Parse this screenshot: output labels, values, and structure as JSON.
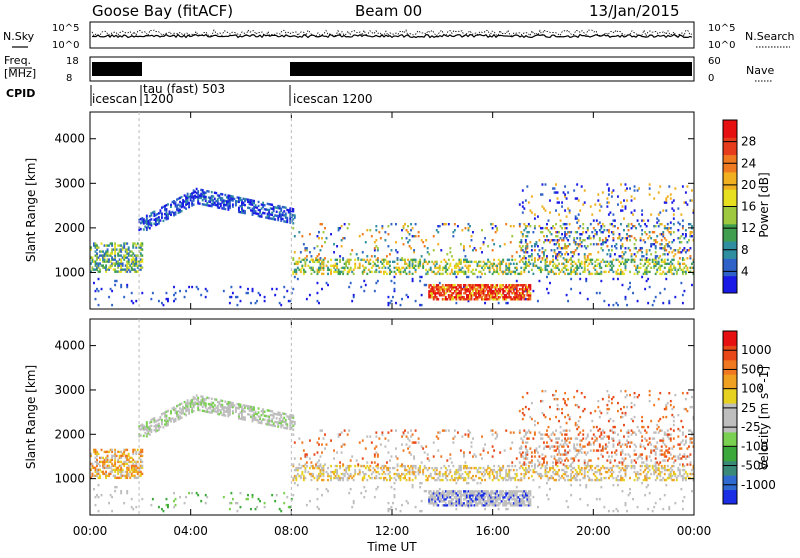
{
  "header": {
    "station": "Goose Bay (fitACF)",
    "beam": "Beam 00",
    "date": "13/Jan/2015"
  },
  "strips": {
    "nsky_label": "N.Sky",
    "nsearch_label": "N.Search",
    "noise_ticks_left": [
      "10^5",
      "10^0"
    ],
    "noise_ticks_right": [
      "10^5",
      "10^0"
    ],
    "freq_label_1": "Freq.",
    "freq_label_2": "[MHz]",
    "freq_ticks": [
      "18",
      "8"
    ],
    "nave_label": "Nave",
    "nave_ticks": [
      "60",
      "0"
    ],
    "cpid_label": "CPID",
    "cpid_entries": [
      {
        "label": "icescan",
        "start_hour": 0
      },
      {
        "label": "1200",
        "start_hour": 1.95
      },
      {
        "label": "tau (fast) 503",
        "start_hour": 2.0
      },
      {
        "label": "icescan 1200",
        "start_hour": 8.0
      }
    ]
  },
  "chart_data": [
    {
      "type": "heatmap",
      "quantity": "Power",
      "ylabel": "Slant Range [km]",
      "ylim": [
        180,
        4600
      ],
      "yticks": [
        1000,
        2000,
        3000,
        4000
      ],
      "xlim_hours": [
        0,
        24
      ],
      "colorbar": {
        "label": "Power [dB]",
        "range": [
          0,
          32
        ],
        "ticks": [
          "4",
          "8",
          "12",
          "16",
          "20",
          "24",
          "28"
        ],
        "colors": [
          "#1a1ae6",
          "#2f62c8",
          "#2f8ea0",
          "#3f9e50",
          "#9ec840",
          "#e6e020",
          "#f0b020",
          "#f07a20",
          "#e63c1c",
          "#e61010"
        ]
      },
      "features": [
        {
          "name": "E-region band",
          "range_km": [
            1000,
            1600
          ],
          "hours": [
            0,
            2
          ]
        },
        {
          "name": "F-region arc",
          "range_km": [
            1800,
            2900
          ],
          "hours": [
            1.9,
            8
          ],
          "peak_hour": 4.2,
          "peak_km": 2700
        },
        {
          "name": "band ~1100 km",
          "range_km": [
            900,
            1300
          ],
          "hours": [
            8,
            24
          ]
        },
        {
          "name": "strong echoes ~500 km",
          "range_km": [
            380,
            720
          ],
          "hours": [
            13.4,
            17.5
          ]
        }
      ]
    },
    {
      "type": "heatmap",
      "quantity": "Velocity",
      "ylabel": "Slant Range [km]",
      "ylim": [
        180,
        4600
      ],
      "yticks": [
        1000,
        2000,
        3000,
        4000
      ],
      "xlabel": "Time UT",
      "xticks": [
        "00:00",
        "04:00",
        "08:00",
        "12:00",
        "16:00",
        "20:00",
        "00:00"
      ],
      "xlim_hours": [
        0,
        24
      ],
      "colorbar": {
        "label": "Velocity [m s^-1]",
        "ticks": [
          "1000",
          "500",
          "100",
          "25",
          "-25",
          "-100",
          "-500",
          "-1000"
        ],
        "colors": [
          "#1a2ee6",
          "#2f6ad0",
          "#3a8a7a",
          "#3aa83a",
          "#7ad050",
          "#bebebe",
          "#bebebe",
          "#e6d020",
          "#f0a020",
          "#f07820",
          "#e84818",
          "#e61010"
        ]
      }
    }
  ]
}
